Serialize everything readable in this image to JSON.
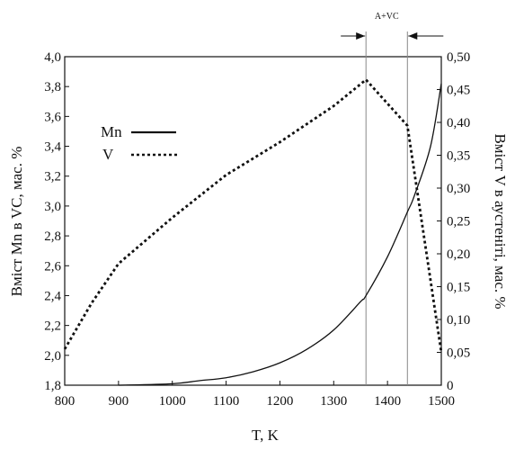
{
  "chart_data": {
    "type": "line",
    "title": "",
    "xlabel": "T, K",
    "ylabel_left": "Вміст Mn в VC, мас. %",
    "ylabel_right": "Вміст V в аустеніті, мас. %",
    "xlim": [
      800,
      1500
    ],
    "ylim_left": [
      1.8,
      4.0
    ],
    "ylim_right": [
      0,
      0.5
    ],
    "x_ticks": [
      "800",
      "900",
      "1000",
      "1100",
      "1200",
      "1300",
      "1400",
      "1500"
    ],
    "y_left_ticks": [
      "1,8",
      "2,0",
      "2,2",
      "2,4",
      "2,6",
      "2,8",
      "3,0",
      "3,2",
      "3,4",
      "3,6",
      "3,8",
      "4,0"
    ],
    "y_right_ticks": [
      "0",
      "0,05",
      "0,10",
      "0,15",
      "0,20",
      "0,25",
      "0,30",
      "0,35",
      "0,40",
      "0,45",
      "0,50"
    ],
    "grid": false,
    "legend_position": "upper-left",
    "region_annotation": {
      "label": "A+VC",
      "x_start": 1360,
      "x_end": 1437
    },
    "series": [
      {
        "name": "Mn",
        "axis": "left",
        "style": "solid",
        "x": [
          900,
          1000,
          1050,
          1100,
          1150,
          1200,
          1250,
          1300,
          1350,
          1360,
          1400,
          1437,
          1450,
          1480,
          1500
        ],
        "y": [
          1.8,
          1.81,
          1.83,
          1.85,
          1.89,
          1.95,
          2.04,
          2.17,
          2.36,
          2.4,
          2.66,
          2.96,
          3.07,
          3.4,
          3.82
        ]
      },
      {
        "name": "V",
        "axis": "right",
        "style": "dotted",
        "x": [
          800,
          850,
          900,
          950,
          1000,
          1100,
          1200,
          1300,
          1360,
          1437,
          1500
        ],
        "y": [
          0.055,
          0.125,
          0.185,
          0.22,
          0.255,
          0.32,
          0.37,
          0.425,
          0.465,
          0.395,
          0.05
        ]
      }
    ]
  },
  "legend": {
    "mn_label": "Mn",
    "v_label": "V"
  }
}
